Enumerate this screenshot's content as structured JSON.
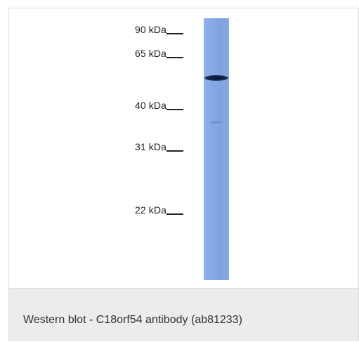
{
  "blot": {
    "markers": [
      {
        "label": "90 kDa"
      },
      {
        "label": "65 kDa"
      },
      {
        "label": "40 kDa"
      },
      {
        "label": "31 kDa"
      },
      {
        "label": "22 kDa"
      }
    ],
    "lane_color": "#86a9e6",
    "band_color": "#16284a"
  },
  "caption": {
    "text": "Western blot - C18orf54 antibody (ab81233)"
  },
  "colors": {
    "caption_background": "#ececec",
    "border": "#dcdcdc"
  }
}
